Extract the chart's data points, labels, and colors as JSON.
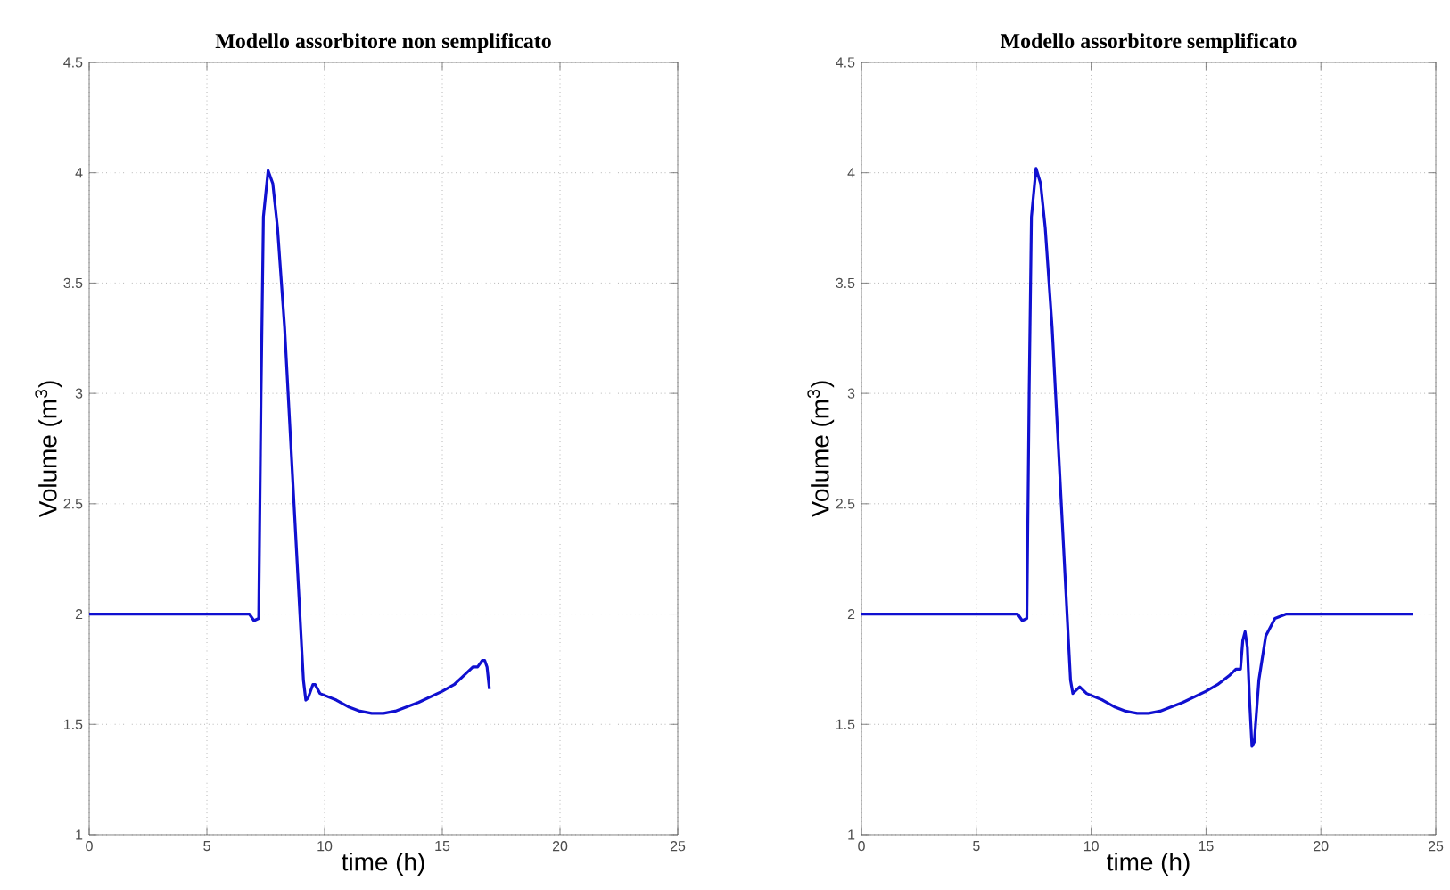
{
  "chart_data": [
    {
      "type": "line",
      "title": "Modello assorbitore non semplificato",
      "xlabel": "time (h)",
      "ylabel": "Volume (m$^{3}$)",
      "xlim": [
        0,
        25
      ],
      "ylim": [
        1,
        4.5
      ],
      "xticks": [
        0,
        5,
        10,
        15,
        20,
        25
      ],
      "yticks": [
        1,
        1.5,
        2,
        2.5,
        3,
        3.5,
        4,
        4.5
      ],
      "grid": true,
      "marker": "none",
      "line_style": "solid",
      "series": [
        {
          "color": "#1010d0",
          "x": [
            0,
            3,
            6.8,
            7.0,
            7.2,
            7.3,
            7.4,
            7.6,
            7.8,
            8.0,
            8.3,
            8.6,
            8.9,
            9.1,
            9.2,
            9.3,
            9.5,
            9.6,
            9.8,
            10.5,
            11,
            11.5,
            12,
            12.5,
            13,
            14,
            15,
            15.5,
            16,
            16.3,
            16.5,
            16.7,
            16.8,
            16.9,
            17.0
          ],
          "values": [
            2.0,
            2.0,
            2.0,
            1.97,
            1.98,
            3.0,
            3.8,
            4.01,
            3.95,
            3.75,
            3.3,
            2.7,
            2.1,
            1.7,
            1.61,
            1.62,
            1.68,
            1.68,
            1.64,
            1.61,
            1.58,
            1.56,
            1.55,
            1.55,
            1.56,
            1.6,
            1.65,
            1.68,
            1.73,
            1.76,
            1.76,
            1.79,
            1.79,
            1.76,
            1.66
          ]
        }
      ]
    },
    {
      "type": "line",
      "title": "Modello assorbitore semplificato",
      "xlabel": "time (h)",
      "ylabel": "Volume (m$^{3}$)",
      "xlim": [
        0,
        25
      ],
      "ylim": [
        1,
        4.5
      ],
      "xticks": [
        0,
        5,
        10,
        15,
        20,
        25
      ],
      "yticks": [
        1,
        1.5,
        2,
        2.5,
        3,
        3.5,
        4,
        4.5
      ],
      "grid": true,
      "marker": "none",
      "line_style": "solid",
      "series": [
        {
          "color": "#1010d0",
          "x": [
            0,
            3,
            6.8,
            7.0,
            7.2,
            7.3,
            7.4,
            7.6,
            7.8,
            8.0,
            8.3,
            8.6,
            8.9,
            9.1,
            9.2,
            9.3,
            9.5,
            9.8,
            10.5,
            11,
            11.5,
            12,
            12.5,
            13,
            14,
            15,
            15.5,
            16,
            16.3,
            16.5,
            16.6,
            16.7,
            16.8,
            16.9,
            17.0,
            17.1,
            17.3,
            17.6,
            18,
            18.5,
            21,
            24
          ],
          "values": [
            2.0,
            2.0,
            2.0,
            1.97,
            1.98,
            3.0,
            3.8,
            4.02,
            3.95,
            3.75,
            3.3,
            2.7,
            2.1,
            1.7,
            1.64,
            1.65,
            1.67,
            1.64,
            1.61,
            1.58,
            1.56,
            1.55,
            1.55,
            1.56,
            1.6,
            1.65,
            1.68,
            1.72,
            1.75,
            1.75,
            1.88,
            1.92,
            1.85,
            1.6,
            1.4,
            1.42,
            1.7,
            1.9,
            1.98,
            2.0,
            2.0,
            2.0
          ]
        }
      ]
    }
  ]
}
